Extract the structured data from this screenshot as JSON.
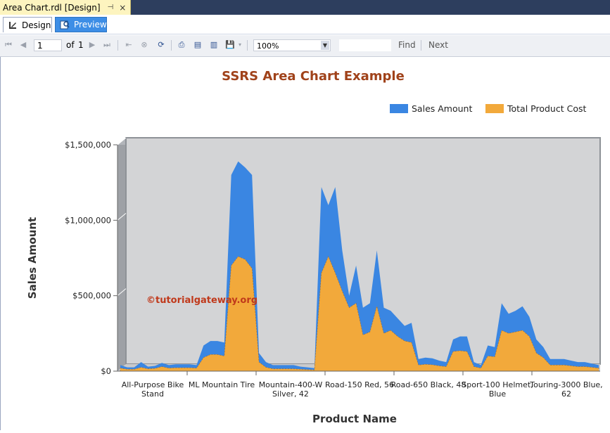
{
  "document_tab": {
    "title": "Area Chart.rdl [Design]",
    "pin_icon": "pin-icon",
    "close_icon": "close-icon"
  },
  "view_tabs": [
    {
      "label": "Design",
      "icon": "design-icon",
      "active": false
    },
    {
      "label": "Preview",
      "icon": "preview-icon",
      "active": true
    }
  ],
  "toolbar": {
    "page_current": "1",
    "page_of_label": "of",
    "page_total": "1",
    "zoom": "100%",
    "find_label": "Find",
    "next_label": "Next"
  },
  "watermark": "©tutorialgateway.org",
  "colors": {
    "sales": "#3a86e2",
    "cost": "#f2a93b",
    "plot_bg": "#d3d4d6",
    "title": "#a0421a"
  },
  "chart_data": {
    "type": "area",
    "title": "SSRS Area Chart Example",
    "xlabel": "Product Name",
    "ylabel": "Sales Amount",
    "ylim": [
      0,
      1500000
    ],
    "yticks": [
      {
        "value": 0,
        "label": "$0"
      },
      {
        "value": 500000,
        "label": "$500,000"
      },
      {
        "value": 1000000,
        "label": "$1,000,000"
      },
      {
        "value": 1500000,
        "label": "$1,500,000"
      }
    ],
    "xtick_labels": [
      [
        "All-Purpose Bike",
        "Stand"
      ],
      [
        "ML Mountain Tire"
      ],
      [
        "Mountain-400-W",
        "Silver, 42"
      ],
      [
        "Road-150 Red, 56"
      ],
      [
        "Road-650 Black, 48"
      ],
      [
        "Sport-100 Helmet,",
        "Blue"
      ],
      [
        "Touring-3000 Blue,",
        "62"
      ]
    ],
    "legend_position": "top-right",
    "series": [
      {
        "name": "Sales Amount",
        "color": "#3a86e2",
        "values": [
          40000,
          25000,
          25000,
          60000,
          30000,
          35000,
          55000,
          40000,
          45000,
          45000,
          45000,
          40000,
          170000,
          200000,
          200000,
          190000,
          1300000,
          1390000,
          1350000,
          1300000,
          120000,
          60000,
          40000,
          40000,
          40000,
          40000,
          30000,
          25000,
          20000,
          1220000,
          1100000,
          1220000,
          800000,
          500000,
          700000,
          420000,
          450000,
          800000,
          420000,
          400000,
          350000,
          300000,
          320000,
          80000,
          90000,
          85000,
          70000,
          60000,
          210000,
          230000,
          230000,
          60000,
          40000,
          170000,
          160000,
          450000,
          380000,
          400000,
          430000,
          360000,
          210000,
          160000,
          80000,
          80000,
          80000,
          70000,
          60000,
          60000,
          50000,
          40000
        ]
      },
      {
        "name": "Total Product Cost",
        "color": "#f2a93b",
        "values": [
          20000,
          12000,
          12000,
          25000,
          15000,
          18000,
          30000,
          20000,
          22000,
          22000,
          22000,
          20000,
          90000,
          110000,
          110000,
          100000,
          700000,
          760000,
          740000,
          680000,
          60000,
          25000,
          15000,
          15000,
          15000,
          15000,
          12000,
          10000,
          8000,
          650000,
          760000,
          650000,
          530000,
          420000,
          450000,
          240000,
          260000,
          430000,
          250000,
          270000,
          230000,
          200000,
          190000,
          40000,
          45000,
          42000,
          35000,
          30000,
          130000,
          135000,
          130000,
          30000,
          20000,
          100000,
          95000,
          270000,
          250000,
          260000,
          270000,
          230000,
          120000,
          90000,
          40000,
          40000,
          40000,
          35000,
          30000,
          30000,
          25000,
          20000
        ]
      }
    ]
  }
}
